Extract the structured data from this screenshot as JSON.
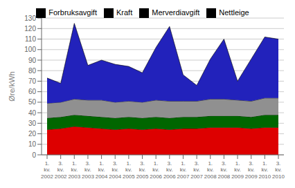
{
  "chart_data": {
    "type": "area",
    "stacked": true,
    "categories": [
      "1.\nkv.\n2002",
      "3.\nkv.\n2002",
      "1.\nkv.\n2003",
      "3.\nkv.\n2003",
      "1.\nkv.\n2004",
      "3.\nkv.\n2004",
      "1.\nkv.\n2005",
      "3.\nkv.\n2005",
      "1.\nkv.\n2006",
      "3.\nkv.\n2006",
      "1.\nkv.\n2007",
      "3.\nkv.\n2007",
      "1.\nkv.\n2008",
      "3.\nkv.\n2008",
      "1.\nkv.\n2009",
      "3.\nkv.\n2009",
      "1.\nkv.\n2010",
      "3.\nkv.\n2010"
    ],
    "series": [
      {
        "name": "Nettleige",
        "color": "#dd0000",
        "values": [
          24,
          25,
          27,
          26,
          25,
          24,
          25,
          24,
          25,
          24,
          25,
          25,
          26,
          26,
          26,
          25,
          26,
          26
        ]
      },
      {
        "name": "Forbruksavgift",
        "color": "#006600",
        "values": [
          11,
          11,
          11,
          11,
          11,
          11,
          11,
          11,
          11,
          11,
          11,
          11,
          11,
          11,
          11,
          11,
          12,
          12
        ]
      },
      {
        "name": "Merverdiavgift",
        "color": "#909090",
        "values": [
          14,
          14,
          15,
          15,
          16,
          15,
          15,
          15,
          16,
          16,
          15,
          15,
          16,
          16,
          15,
          15,
          16,
          16
        ]
      },
      {
        "name": "Kraft",
        "color": "#2222bb",
        "values": [
          24,
          18,
          72,
          33,
          38,
          36,
          33,
          28,
          50,
          71,
          25,
          15,
          38,
          57,
          18,
          40,
          58,
          56
        ]
      }
    ],
    "ylabel": "Øre/kWh",
    "ylim": [
      0,
      130
    ],
    "yticks": [
      0,
      10,
      20,
      30,
      40,
      50,
      60,
      70,
      80,
      90,
      100,
      110,
      120,
      130
    ],
    "grid": true,
    "legend": "top"
  }
}
